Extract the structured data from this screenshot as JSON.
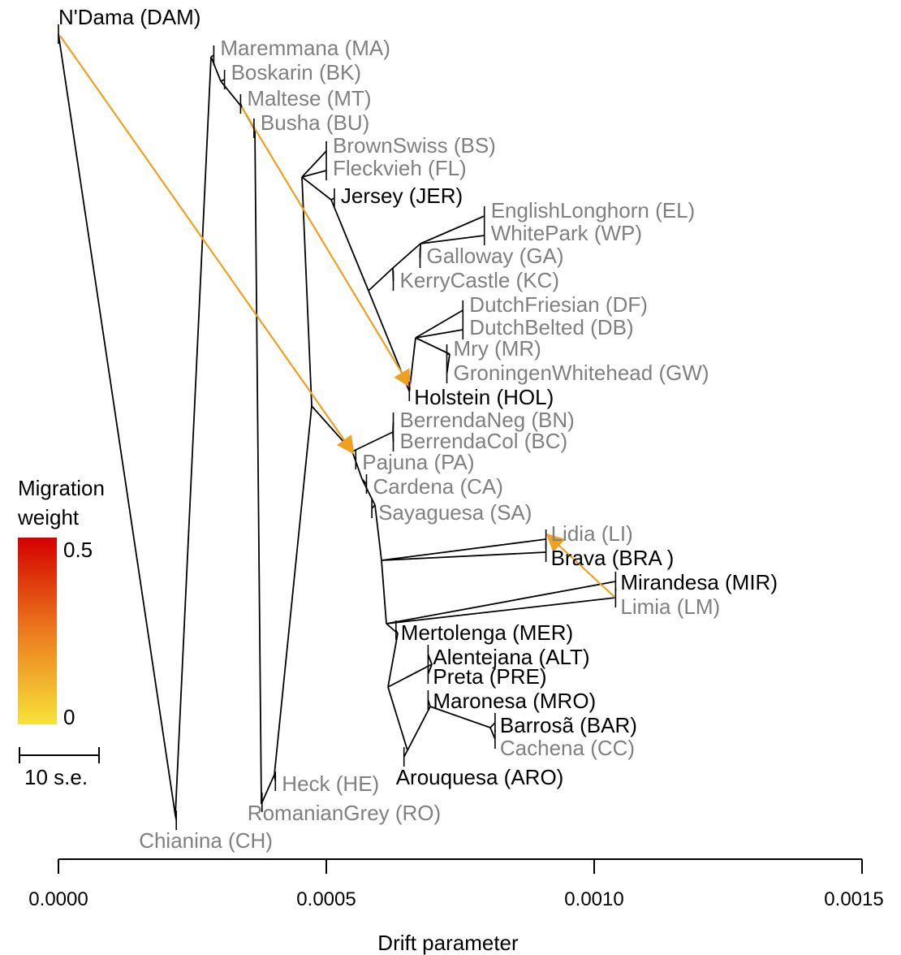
{
  "chart_data": {
    "type": "tree",
    "xlabel": "Drift parameter",
    "xlim": [
      0,
      0.0015
    ],
    "xticks": [
      "0.0000",
      "0.0005",
      "0.0010",
      "0.0015"
    ],
    "xtick_values": [
      0,
      0.0005,
      0.001,
      0.0015
    ],
    "legend": {
      "title_line1": "Migration",
      "title_line2": "weight",
      "max_label": "0.5",
      "min_label": "0",
      "color_high": "#d40000",
      "color_low": "#f7e23a",
      "scale_label": "10 s.e."
    },
    "colors": {
      "black_label": "#000000",
      "grey_label": "#808080",
      "edge": "#000000",
      "migration": "#f0a020"
    },
    "leaves": [
      {
        "name": "N'Dama (DAM)",
        "drift": 0.0,
        "color": "black"
      },
      {
        "name": "Maremmana (MA)",
        "drift": 0.00029,
        "color": "grey"
      },
      {
        "name": "Boskarin (BK)",
        "drift": 0.00031,
        "color": "grey"
      },
      {
        "name": "Maltese (MT)",
        "drift": 0.00034,
        "color": "grey"
      },
      {
        "name": "Busha (BU)",
        "drift": 0.000365,
        "color": "grey"
      },
      {
        "name": "BrownSwiss (BS)",
        "drift": 0.0005,
        "color": "grey"
      },
      {
        "name": "Fleckvieh (FL)",
        "drift": 0.0005,
        "color": "grey"
      },
      {
        "name": "Jersey (JER)",
        "drift": 0.000515,
        "color": "black"
      },
      {
        "name": "EnglishLonghorn (EL)",
        "drift": 0.000795,
        "color": "grey"
      },
      {
        "name": "WhitePark (WP)",
        "drift": 0.000795,
        "color": "grey"
      },
      {
        "name": "Galloway (GA)",
        "drift": 0.000675,
        "color": "grey"
      },
      {
        "name": "KerryCastle (KC)",
        "drift": 0.000625,
        "color": "grey"
      },
      {
        "name": "DutchFriesian (DF)",
        "drift": 0.000755,
        "color": "grey"
      },
      {
        "name": "DutchBelted (DB)",
        "drift": 0.000755,
        "color": "grey"
      },
      {
        "name": "Mry (MR)",
        "drift": 0.000725,
        "color": "grey"
      },
      {
        "name": "GroningenWhitehead (GW)",
        "drift": 0.000725,
        "color": "grey"
      },
      {
        "name": "Holstein (HOL)",
        "drift": 0.000655,
        "color": "black"
      },
      {
        "name": "BerrendaNeg (BN)",
        "drift": 0.000625,
        "color": "grey"
      },
      {
        "name": "BerrendaCol (BC)",
        "drift": 0.000625,
        "color": "grey"
      },
      {
        "name": "Pajuna (PA)",
        "drift": 0.000555,
        "color": "grey"
      },
      {
        "name": "Cardena (CA)",
        "drift": 0.000575,
        "color": "grey"
      },
      {
        "name": "Sayaguesa (SA)",
        "drift": 0.000585,
        "color": "grey"
      },
      {
        "name": "Lidia (LI)",
        "drift": 0.00091,
        "color": "grey"
      },
      {
        "name": "Brava (BRA )",
        "drift": 0.00091,
        "color": "black"
      },
      {
        "name": "Mirandesa (MIR)",
        "drift": 0.00104,
        "color": "black"
      },
      {
        "name": "Limia (LM)",
        "drift": 0.00104,
        "color": "grey"
      },
      {
        "name": "Mertolenga (MER)",
        "drift": 0.00063,
        "color": "black"
      },
      {
        "name": "Alentejana (ALT)",
        "drift": 0.00069,
        "color": "black"
      },
      {
        "name": "Preta (PRE)",
        "drift": 0.00069,
        "color": "black"
      },
      {
        "name": "Maronesa (MRO)",
        "drift": 0.00069,
        "color": "black"
      },
      {
        "name": "Barrosã (BAR)",
        "drift": 0.000815,
        "color": "black"
      },
      {
        "name": "Cachena (CC)",
        "drift": 0.000815,
        "color": "grey"
      },
      {
        "name": "Arouquesa (ARO)",
        "drift": 0.000645,
        "color": "black"
      },
      {
        "name": "Heck (HE)",
        "drift": 0.000405,
        "color": "grey"
      },
      {
        "name": "RomanianGrey (RO)",
        "drift": 0.00038,
        "color": "grey"
      },
      {
        "name": "Chianina (CH)",
        "drift": 0.00022,
        "color": "grey"
      }
    ],
    "migration_edges": [
      {
        "from": "N'Dama (DAM)",
        "to": "Pajuna (PA)"
      },
      {
        "from": "Maltese (MT)",
        "to": "Holstein (HOL)"
      },
      {
        "from": "Limia (LM)",
        "to": "Lidia (LI)"
      }
    ]
  }
}
